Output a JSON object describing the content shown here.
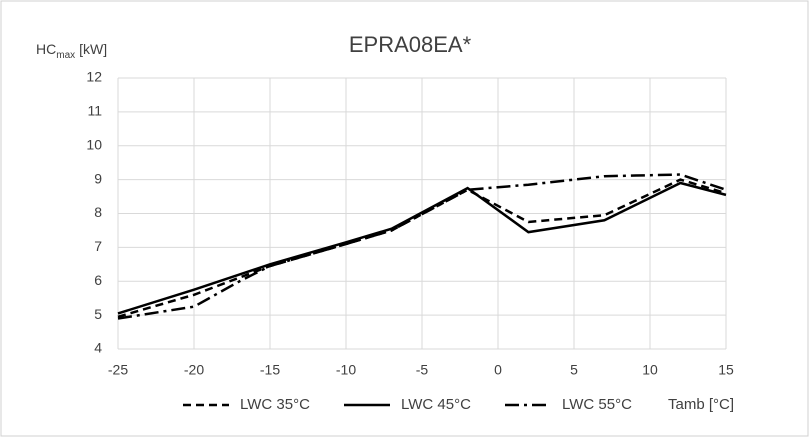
{
  "chart_data": {
    "type": "line",
    "title": "EPRA08EA*",
    "y_label": "HC",
    "y_label_sub": "max",
    "y_label_unit": "[kW]",
    "x_label": "Tamb [°C]",
    "xlim": [
      -25,
      15
    ],
    "xticks": [
      -25,
      -20,
      -15,
      -10,
      -5,
      0,
      5,
      10,
      15
    ],
    "ylim": [
      4,
      12
    ],
    "yticks": [
      4,
      5,
      6,
      7,
      8,
      9,
      10,
      11,
      12
    ],
    "grid": true,
    "series": [
      {
        "name": "LWC 35°C",
        "color": "#000000",
        "dash": "dashed",
        "x": [
          -25,
          -20,
          -15,
          -10,
          -7,
          -2,
          2,
          7,
          12,
          15
        ],
        "values": [
          4.95,
          5.6,
          6.45,
          7.1,
          7.5,
          8.7,
          7.75,
          7.95,
          9.0,
          8.6
        ]
      },
      {
        "name": "LWC 45°C",
        "color": "#000000",
        "dash": "solid",
        "x": [
          -25,
          -20,
          -15,
          -10,
          -7,
          -2,
          2,
          7,
          12,
          15
        ],
        "values": [
          5.05,
          5.75,
          6.5,
          7.15,
          7.55,
          8.75,
          7.45,
          7.8,
          8.9,
          8.55
        ]
      },
      {
        "name": "LWC 55°C",
        "color": "#000000",
        "dash": "dashdot",
        "x": [
          -25,
          -20,
          -17,
          -15,
          -10,
          -7,
          -2,
          2,
          7,
          12,
          15
        ],
        "values": [
          4.9,
          5.25,
          6.0,
          6.45,
          7.1,
          7.5,
          8.7,
          8.85,
          9.1,
          9.15,
          8.7
        ]
      }
    ]
  }
}
